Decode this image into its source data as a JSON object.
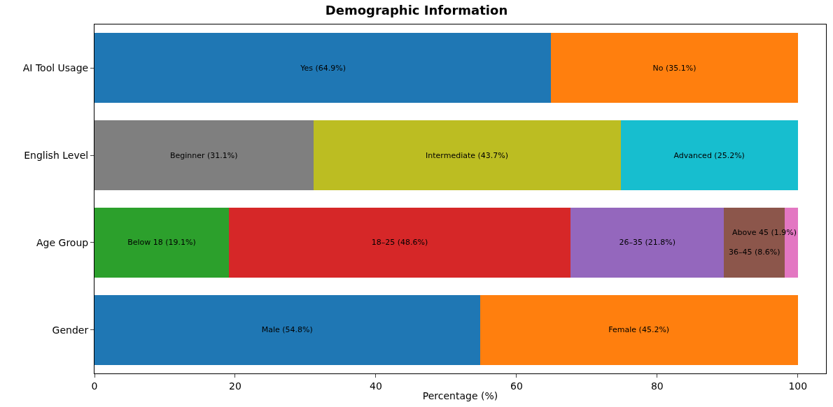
{
  "chart_data": {
    "type": "bar",
    "orientation": "horizontal",
    "stacked": true,
    "title": "Demographic Information",
    "xlabel": "Percentage (%)",
    "categories": [
      "AI Tool Usage",
      "English Level",
      "Age Group",
      "Gender"
    ],
    "xlim": [
      0,
      104
    ],
    "xticks": [
      0,
      20,
      40,
      60,
      80,
      100
    ],
    "series": [
      {
        "color": "#1f77b4",
        "values": [
          64.9,
          null,
          null,
          null
        ],
        "value_labels": [
          "Yes (64.9%)",
          null,
          null,
          null
        ]
      },
      {
        "color": "#ff7f0e",
        "values": [
          35.1,
          null,
          null,
          null
        ],
        "value_labels": [
          "No (35.1%)",
          null,
          null,
          null
        ]
      },
      {
        "color": "#7f7f7f",
        "values": [
          null,
          31.1,
          null,
          null
        ],
        "value_labels": [
          null,
          "Beginner (31.1%)",
          null,
          null
        ]
      },
      {
        "color": "#bcbd22",
        "values": [
          null,
          43.7,
          null,
          null
        ],
        "value_labels": [
          null,
          "Intermediate (43.7%)",
          null,
          null
        ]
      },
      {
        "color": "#17becf",
        "values": [
          null,
          25.2,
          null,
          null
        ],
        "value_labels": [
          null,
          "Advanced (25.2%)",
          null,
          null
        ]
      },
      {
        "color": "#2ca02c",
        "values": [
          null,
          null,
          19.1,
          null
        ],
        "value_labels": [
          null,
          null,
          "Below 18 (19.1%)",
          null
        ]
      },
      {
        "color": "#d62728",
        "values": [
          null,
          null,
          48.6,
          null
        ],
        "value_labels": [
          null,
          null,
          "18–25 (48.6%)",
          null
        ]
      },
      {
        "color": "#9467bd",
        "values": [
          null,
          null,
          21.8,
          null
        ],
        "value_labels": [
          null,
          null,
          "26–35 (21.8%)",
          null
        ]
      },
      {
        "color": "#8c564b",
        "values": [
          null,
          null,
          8.6,
          null
        ],
        "value_labels": [
          null,
          null,
          "36–45 (8.6%)",
          null
        ]
      },
      {
        "color": "#e377c2",
        "values": [
          null,
          null,
          1.9,
          null
        ],
        "value_labels": [
          null,
          null,
          "Above 45 (1.9%)",
          null
        ]
      },
      {
        "color": "#1f77b4",
        "values": [
          null,
          null,
          null,
          54.8
        ],
        "value_labels": [
          null,
          null,
          null,
          "Male (54.8%)"
        ]
      },
      {
        "color": "#ff7f0e",
        "values": [
          null,
          null,
          null,
          45.2
        ],
        "value_labels": [
          null,
          null,
          null,
          "Female (45.2%)"
        ]
      }
    ]
  }
}
